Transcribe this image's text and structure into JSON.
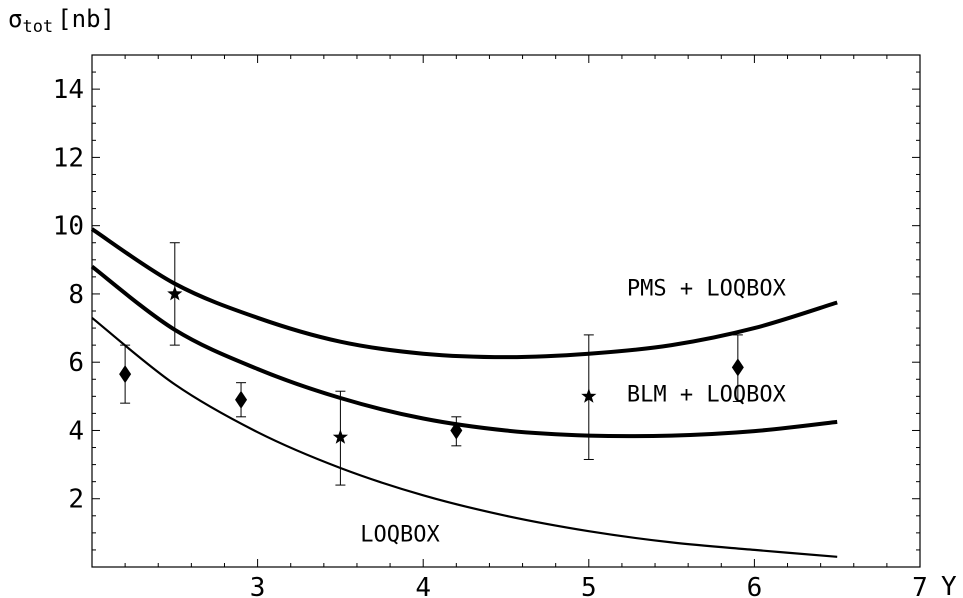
{
  "chart_data": {
    "type": "line",
    "xlabel": "Y",
    "ylabel": {
      "main": "σ",
      "sub": "tot",
      "unit": "[nb]"
    },
    "xlim": [
      2.0,
      7.0
    ],
    "ylim": [
      0.0,
      15.0
    ],
    "xticks": [
      3,
      4,
      5,
      6,
      7
    ],
    "yticks": [
      2,
      4,
      6,
      8,
      10,
      12,
      14
    ],
    "grid": false,
    "series": [
      {
        "name": "PMS + LOQBOX",
        "x": [
          2.0,
          2.5,
          3.0,
          3.5,
          4.0,
          4.5,
          5.0,
          5.5,
          6.0,
          6.5
        ],
        "y": [
          9.9,
          8.3,
          7.3,
          6.6,
          6.25,
          6.15,
          6.25,
          6.5,
          7.0,
          7.75
        ]
      },
      {
        "name": "BLM + LOQBOX",
        "x": [
          2.0,
          2.5,
          3.0,
          3.5,
          4.0,
          4.5,
          5.0,
          5.5,
          6.0,
          6.5
        ],
        "y": [
          8.8,
          6.95,
          5.8,
          4.95,
          4.35,
          4.0,
          3.85,
          3.85,
          3.98,
          4.25
        ]
      },
      {
        "name": "LOQBOX",
        "x": [
          2.0,
          2.5,
          3.0,
          3.5,
          4.0,
          4.5,
          5.0,
          5.5,
          6.0,
          6.5
        ],
        "y": [
          7.3,
          5.35,
          3.95,
          2.9,
          2.1,
          1.5,
          1.05,
          0.72,
          0.5,
          0.3
        ]
      }
    ],
    "points": [
      {
        "marker": "diamond",
        "x": 2.2,
        "y": 5.65,
        "lo": 4.8,
        "hi": 6.5
      },
      {
        "marker": "star",
        "x": 2.5,
        "y": 8.0,
        "lo": 6.5,
        "hi": 9.5
      },
      {
        "marker": "diamond",
        "x": 2.9,
        "y": 4.9,
        "lo": 4.4,
        "hi": 5.4
      },
      {
        "marker": "star",
        "x": 3.5,
        "y": 3.8,
        "lo": 2.4,
        "hi": 5.15
      },
      {
        "marker": "diamond",
        "x": 4.2,
        "y": 4.0,
        "lo": 3.55,
        "hi": 4.4
      },
      {
        "marker": "star",
        "x": 5.0,
        "y": 5.0,
        "lo": 3.15,
        "hi": 6.8
      },
      {
        "marker": "diamond",
        "x": 5.9,
        "y": 5.85,
        "lo": 4.85,
        "hi": 6.8
      }
    ],
    "annotations": [
      {
        "text": "PMS + LOQBOX",
        "x": 5.23,
        "y": 7.95
      },
      {
        "text": "BLM + LOQBOX",
        "x": 5.23,
        "y": 4.85
      },
      {
        "text": "LOQBOX",
        "x": 3.62,
        "y": 0.75
      }
    ]
  }
}
